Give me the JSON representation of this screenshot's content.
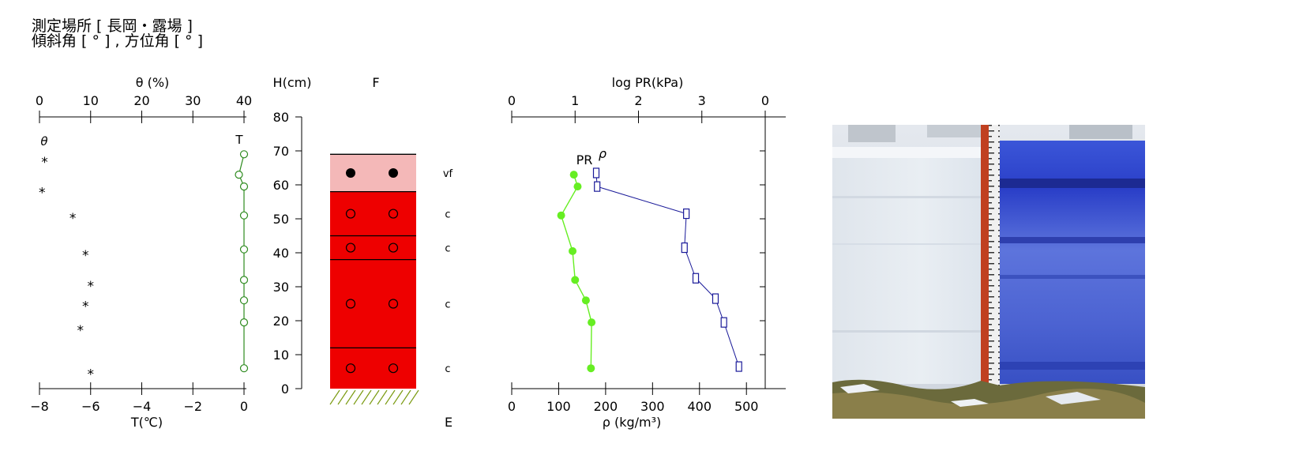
{
  "header": {
    "line1": "測定場所 [ 長岡・露場 ]",
    "line2": "傾斜角 [ ° ] , 方位角 [ ° ]"
  },
  "chart_data": [
    {
      "type": "scatter",
      "title": "",
      "top_axis": {
        "label": "θ (%)",
        "ticks": [
          0,
          10,
          20,
          30,
          40
        ],
        "range": [
          0,
          40
        ]
      },
      "bottom_axis": {
        "label": "T(℃)",
        "ticks": [
          -8,
          -6,
          -4,
          -2,
          0
        ],
        "range": [
          -8,
          0
        ]
      },
      "y_range": [
        0,
        80
      ],
      "series": [
        {
          "name": "θ",
          "marker": "asterisk",
          "color": "#000000",
          "points": [
            [
              1,
              67
            ],
            [
              0.5,
              58
            ],
            [
              6.5,
              50.5
            ],
            [
              9,
              39.5
            ],
            [
              10,
              30.5
            ],
            [
              9,
              24.5
            ],
            [
              8,
              17.5
            ],
            [
              10,
              4.5
            ]
          ]
        },
        {
          "name": "T",
          "marker": "open-circle",
          "color": "#2e8b1f",
          "points": [
            [
              0,
              69
            ],
            [
              -0.2,
              63
            ],
            [
              0,
              59.5
            ],
            [
              0,
              51
            ],
            [
              0,
              41
            ],
            [
              0,
              32
            ],
            [
              0,
              26
            ],
            [
              0,
              19.5
            ],
            [
              0,
              6
            ]
          ]
        }
      ]
    },
    {
      "type": "table",
      "title": "F",
      "y_label": "H(cm)",
      "y_ticks": [
        0,
        10,
        20,
        30,
        40,
        50,
        60,
        70,
        80
      ],
      "layers": [
        {
          "top": 69,
          "bottom": 58,
          "grain": "vf",
          "symbol": "filled-circle",
          "color": "#f4b8b8"
        },
        {
          "top": 58,
          "bottom": 45,
          "grain": "c",
          "symbol": "open-circle",
          "color": "#ee0000"
        },
        {
          "top": 45,
          "bottom": 38,
          "grain": "c",
          "symbol": "open-circle",
          "color": "#ee0000"
        },
        {
          "top": 38,
          "bottom": 12,
          "grain": "c",
          "symbol": "open-circle",
          "color": "#ee0000"
        },
        {
          "top": 12,
          "bottom": 0,
          "grain": "c",
          "symbol": "open-circle",
          "color": "#ee0000"
        }
      ],
      "ground_label": "E"
    },
    {
      "type": "line",
      "title": "",
      "top_axis": {
        "label": "log PR(kPa)",
        "ticks": [
          "0",
          "1",
          "2",
          "3",
          "0"
        ],
        "range": [
          0,
          4
        ]
      },
      "bottom_axis": {
        "label": "ρ (kg/m³)",
        "ticks": [
          0,
          100,
          200,
          300,
          400,
          500
        ],
        "range": [
          0,
          540
        ]
      },
      "y_range": [
        0,
        80
      ],
      "series": [
        {
          "name": "PR",
          "axis": "top",
          "marker": "filled-circle",
          "color": "#66ee22",
          "points": [
            [
              0.98,
              63
            ],
            [
              1.04,
              59.5
            ],
            [
              0.78,
              51
            ],
            [
              0.96,
              40.5
            ],
            [
              1.0,
              32
            ],
            [
              1.17,
              26
            ],
            [
              1.26,
              19.5
            ],
            [
              1.25,
              6
            ]
          ]
        },
        {
          "name": "ρ",
          "axis": "bottom",
          "marker": "open-square",
          "color": "#1a1a99",
          "points": [
            [
              180,
              63.5
            ],
            [
              182,
              59.5
            ],
            [
              372,
              51.5
            ],
            [
              368,
              41.5
            ],
            [
              392,
              32.5
            ],
            [
              434,
              26.5
            ],
            [
              452,
              19.5
            ],
            [
              484,
              6.5
            ]
          ]
        }
      ]
    }
  ],
  "photo": {
    "description": "snow pit wall photo with blue dye and measuring scale"
  }
}
